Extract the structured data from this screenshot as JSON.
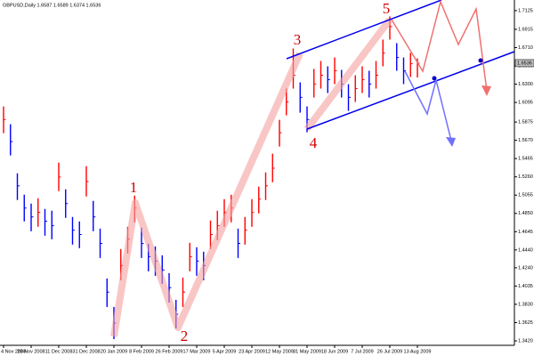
{
  "chart_data": {
    "type": "ohlc",
    "title": "GBPUSD,Daily  1.6587 1.6589 1.6374 1.6536",
    "categories": [
      "4 Nov 2008",
      null,
      null,
      null,
      "23 Nov 2008",
      null,
      null,
      null,
      "11 Dec 2008",
      null,
      null,
      null,
      "31 Dec 2008",
      null,
      null,
      null,
      "20 Jan 2009",
      null,
      null,
      null,
      "8 Feb 2009",
      null,
      null,
      null,
      "26 Feb 2009",
      null,
      null,
      null,
      "17 Mar 2009",
      null,
      null,
      null,
      "5 Apr 2009",
      null,
      null,
      null,
      "23 Apr 2009",
      null,
      null,
      null,
      "12 May 2009",
      null,
      null,
      null,
      "31 May 2009",
      null,
      null,
      null,
      "18 Jun 2009",
      null,
      null,
      null,
      "7 Jul 2009",
      null,
      null,
      null,
      "26 Jul 2009",
      null,
      null,
      null,
      "13 Aug 2009"
    ],
    "high": [
      1.605,
      1.585,
      1.53,
      1.506,
      1.496,
      1.502,
      1.49,
      1.488,
      1.542,
      1.512,
      1.481,
      1.476,
      1.538,
      1.499,
      1.468,
      1.412,
      1.38,
      1.445,
      1.47,
      1.505,
      1.469,
      1.451,
      1.448,
      1.438,
      1.418,
      1.388,
      1.413,
      1.452,
      1.447,
      1.442,
      1.477,
      1.488,
      1.501,
      1.506,
      1.468,
      1.481,
      1.501,
      1.515,
      1.531,
      1.552,
      1.59,
      1.625,
      1.67,
      1.632,
      1.605,
      1.647,
      1.656,
      1.65,
      1.66,
      1.646,
      1.63,
      1.64,
      1.65,
      1.645,
      1.656,
      1.68,
      1.706,
      1.676,
      1.66,
      1.665,
      1.6589
    ],
    "low": [
      1.575,
      1.55,
      1.5,
      1.476,
      1.465,
      1.47,
      1.46,
      1.456,
      1.51,
      1.48,
      1.45,
      1.446,
      1.504,
      1.465,
      1.435,
      1.38,
      1.344,
      1.41,
      1.44,
      1.475,
      1.435,
      1.42,
      1.415,
      1.406,
      1.385,
      1.356,
      1.38,
      1.42,
      1.415,
      1.41,
      1.445,
      1.455,
      1.47,
      1.475,
      1.435,
      1.45,
      1.47,
      1.485,
      1.5,
      1.52,
      1.56,
      1.595,
      1.625,
      1.598,
      1.576,
      1.615,
      1.625,
      1.62,
      1.63,
      1.615,
      1.6,
      1.61,
      1.62,
      1.615,
      1.625,
      1.65,
      1.68,
      1.645,
      1.63,
      1.638,
      1.6374
    ],
    "close": [
      1.5903,
      1.5655,
      1.5159,
      1.491,
      1.4811,
      1.4861,
      1.4762,
      1.4712,
      1.5258,
      1.496,
      1.4662,
      1.4613,
      1.5208,
      1.4811,
      1.4513,
      1.3967,
      1.362,
      1.4265,
      1.4563,
      1.491,
      1.4513,
      1.4364,
      1.4315,
      1.4215,
      1.4017,
      1.3719,
      1.3967,
      1.4364,
      1.4315,
      1.4265,
      1.4613,
      1.4712,
      1.4861,
      1.491,
      1.4513,
      1.4662,
      1.4861,
      1.501,
      1.5159,
      1.5357,
      1.5755,
      1.6102,
      1.64,
      1.6152,
      1.5903,
      1.6301,
      1.64,
      1.635,
      1.645,
      1.6301,
      1.6152,
      1.6251,
      1.635,
      1.6301,
      1.64,
      1.6648,
      1.6946,
      1.6599,
      1.645,
      1.6529,
      1.6536
    ],
    "up_color": "#ff0000",
    "down_color": "#0000ff",
    "ylim": [
      1.337,
      1.7244
    ],
    "yticks": [
      1.7125,
      1.6915,
      {
        "value": 1.671,
        "label": "1.6710"
      },
      1.6505,
      {
        "value": 1.63,
        "label": "1.6300"
      },
      1.6095,
      1.5875,
      {
        "value": 1.567,
        "label": "1.5670"
      },
      1.5465,
      {
        "value": 1.526,
        "label": "1.5260"
      },
      1.5055,
      {
        "value": 1.485,
        "label": "1.4850"
      },
      1.4645,
      {
        "value": 1.444,
        "label": "1.4440"
      },
      {
        "value": 1.424,
        "label": "1.4240"
      },
      1.4035,
      {
        "value": 1.383,
        "label": "1.3830"
      },
      1.3625,
      {
        "value": 1.342,
        "label": "1.3420"
      }
    ],
    "last_price": 1.6536,
    "wave_labels": [
      "1",
      "2",
      "3",
      "4",
      "5"
    ]
  }
}
